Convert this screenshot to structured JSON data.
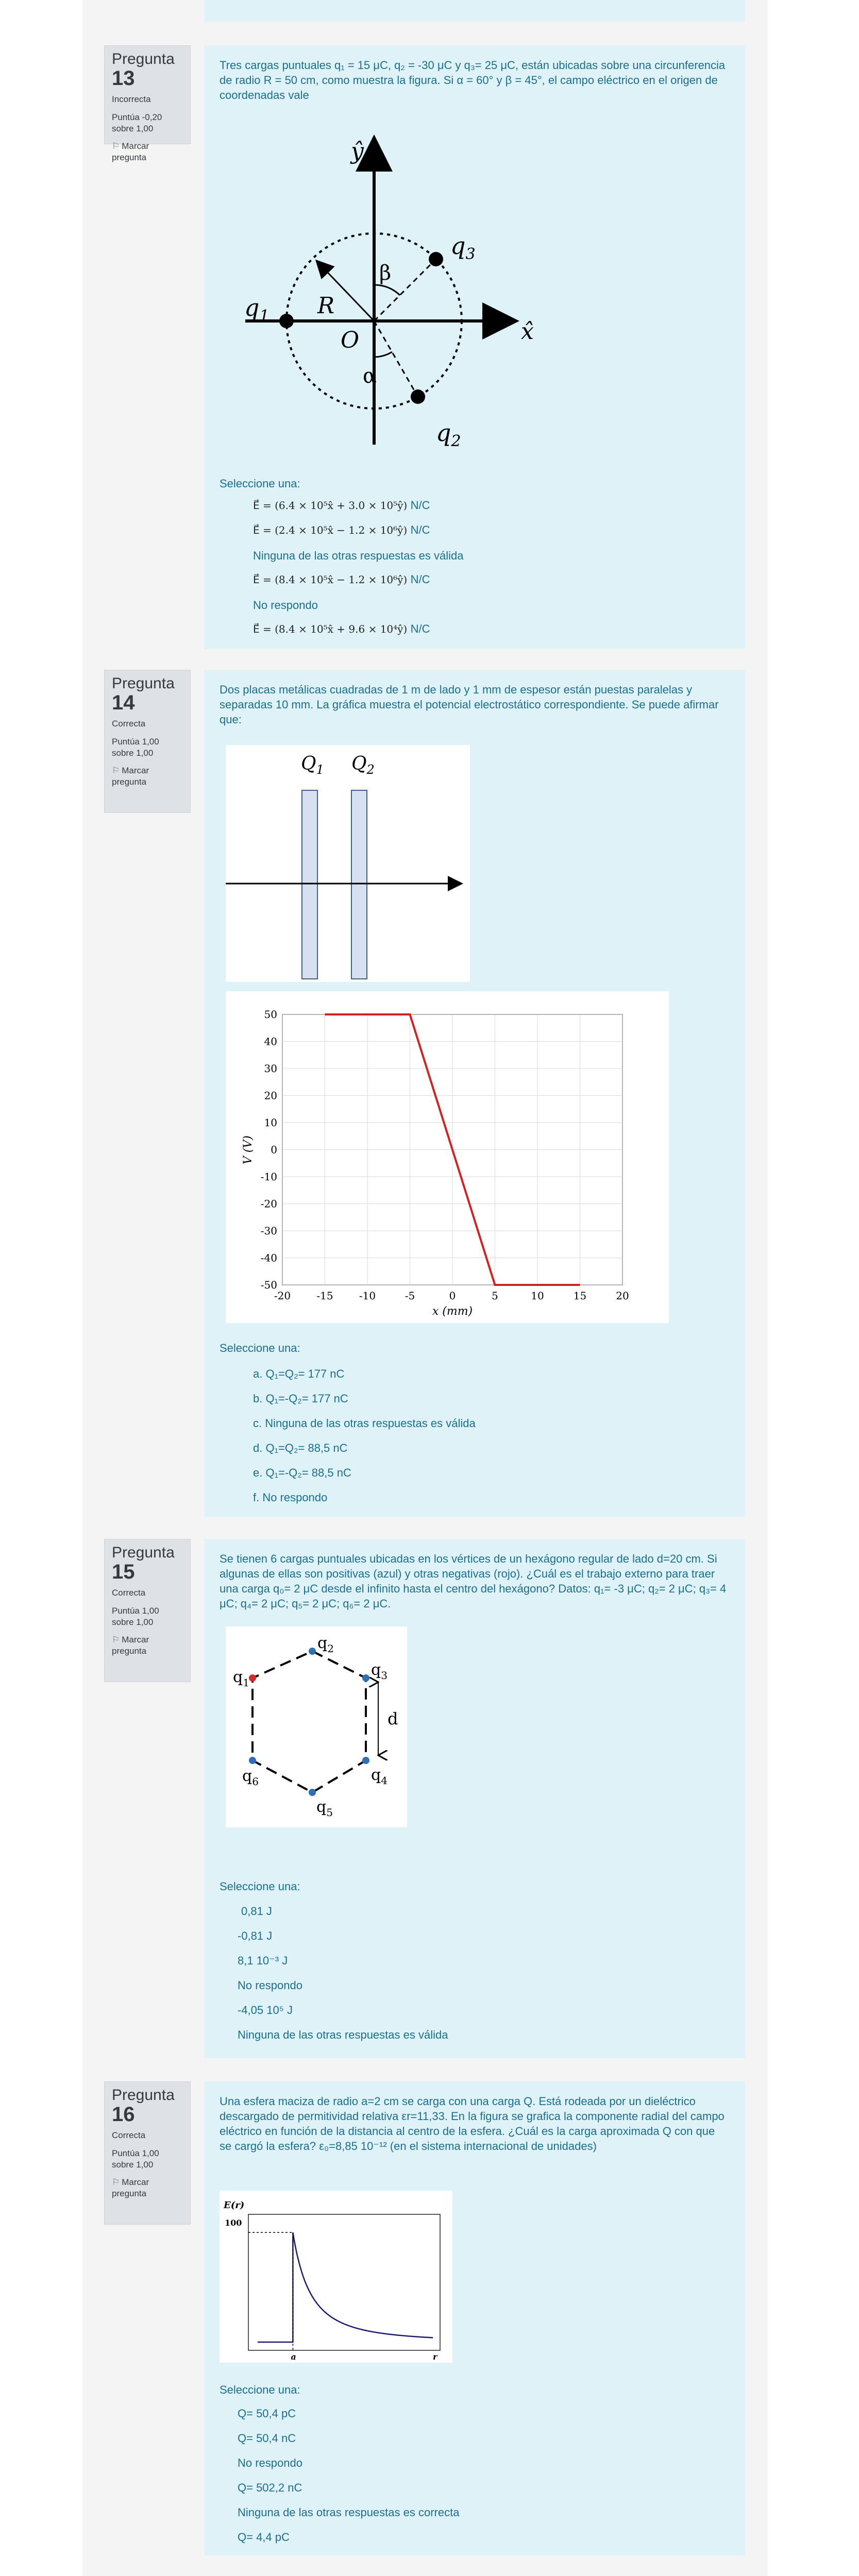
{
  "questions": [
    {
      "word": "Pregunta",
      "number": "13",
      "state": "Incorrecta",
      "grade": "Puntúa -0,20 sobre 1,00",
      "flag": "Marcar pregunta",
      "text": "Tres cargas puntuales q₁ = 15 μC, q₂ = -30 μC y q₃= 25 μC, están ubicadas sobre una circunferencia de radio R = 50 cm, como muestra la figura. Si α = 60° y β = 45°, el campo eléctrico en el origen de coordenadas vale",
      "figure_labels": {
        "y": "ŷ",
        "x": "x̂",
        "q1": "q",
        "q2": "q",
        "q3": "q",
        "s1": "1",
        "s2": "2",
        "s3": "3",
        "R": "R",
        "O": "O",
        "alpha": "α",
        "beta": "β"
      },
      "prompt": "Seleccione una:",
      "options": [
        {
          "math": "E⃗ = (6.4 × 10⁵x̂ + 3.0 × 10⁵ŷ)",
          "unit": "N/C"
        },
        {
          "math": "E⃗ = (2.4 × 10⁵x̂ − 1.2 × 10⁶ŷ)",
          "unit": "N/C"
        },
        {
          "text": "Ninguna de las otras respuestas es válida"
        },
        {
          "math": "E⃗ = (8.4 × 10⁵x̂ − 1.2 × 10⁶ŷ)",
          "unit": "N/C"
        },
        {
          "text": "No respondo"
        },
        {
          "math": "E⃗ = (8.4 × 10⁵x̂ + 9.6 × 10⁴ŷ)",
          "unit": "N/C"
        }
      ]
    },
    {
      "word": "Pregunta",
      "number": "14",
      "state": "Correcta",
      "grade": "Puntúa 1,00 sobre 1,00",
      "flag": "Marcar pregunta",
      "text": "Dos placas metálicas cuadradas de 1 m de lado y 1 mm de espesor están puestas paralelas y separadas 10 mm. La gráfica muestra el potencial electrostático correspondiente. Se puede afirmar que:",
      "plate_labels": {
        "q1": "Q",
        "q2": "Q",
        "s1": "1",
        "s2": "2"
      },
      "prompt": "Seleccione una:",
      "options": [
        "a. Q₁=Q₂= 177 nC",
        "b. Q₁=-Q₂= 177 nC",
        "c. Ninguna de las otras respuestas es válida",
        "d. Q₁=Q₂= 88,5 nC",
        "e. Q₁=-Q₂= 88,5 nC",
        "f. No respondo"
      ]
    },
    {
      "word": "Pregunta",
      "number": "15",
      "state": "Correcta",
      "grade": "Puntúa 1,00 sobre 1,00",
      "flag": "Marcar pregunta",
      "text": "Se tienen 6 cargas puntuales ubicadas en los vértices de un hexágono regular de lado d=20 cm. Si algunas de ellas son positivas (azul) y otras negativas (rojo). ¿Cuál es el trabajo externo para traer una carga q₀= 2 μC desde el infinito hasta el centro del hexágono? Datos: q₁= -3 μC; q₂= 2 μC; q₃= 4 μC; q₄= 2 μC; q₅= 2 μC; q₆= 2 μC.",
      "hex_labels": {
        "q": "q",
        "s1": "1",
        "s2": "2",
        "s3": "3",
        "s4": "4",
        "s5": "5",
        "s6": "6",
        "d": "d"
      },
      "colors": {
        "positive": "#2f6fb5",
        "negative": "#d42a2a"
      },
      "prompt": "Seleccione una:",
      "options": [
        "0,81 J",
        "-0,81 J",
        "8,1 10⁻³ J",
        "No respondo",
        "-4,05 10⁵ J",
        "Ninguna de las otras respuestas es válida"
      ]
    },
    {
      "word": "Pregunta",
      "number": "16",
      "state": "Correcta",
      "grade": "Puntúa 1,00 sobre 1,00",
      "flag": "Marcar pregunta",
      "text": "Una esfera maciza de radio a=2 cm se carga con una carga Q. Está rodeada por un dieléctrico descargado de permitividad relativa εr=11,33. En la figura se grafica la componente radial del campo eléctrico en función de la distancia al centro de la esfera. ¿Cuál es la carga aproximada Q con que se cargó la esfera? ε₀=8,85 10⁻¹² (en el sistema internacional de unidades)",
      "prompt": "Seleccione una:",
      "options": [
        "Q= 50,4 pC",
        "Q= 50,4 nC",
        "No respondo",
        "Q= 502,2 nC",
        "Ninguna de las otras respuestas es correcta",
        "Q= 4,4 pC"
      ]
    }
  ],
  "chart_data": [
    {
      "type": "line",
      "xlabel": "x (mm)",
      "ylabel": "V (V)",
      "xlim": [
        -20,
        20
      ],
      "ylim": [
        -50,
        50
      ],
      "x_ticks": [
        "-20",
        "-15",
        "-10",
        "-5",
        "0",
        "5",
        "10",
        "15",
        "20"
      ],
      "y_ticks": [
        "50",
        "40",
        "30",
        "20",
        "10",
        "0",
        "-10",
        "-20",
        "-30",
        "-40",
        "-50"
      ],
      "grid": true,
      "series": [
        {
          "color": "#d42020",
          "x": [
            -15,
            -5,
            5,
            15
          ],
          "y": [
            50,
            50,
            -50,
            -50
          ]
        }
      ]
    },
    {
      "type": "line",
      "ylabel": "E(r)",
      "xlabel": "r",
      "y_marker_label": "100",
      "x_marker_label": "a",
      "grid": false,
      "series": [
        {
          "color": "#1a1a6e",
          "x": [
            0,
            0.5,
            1,
            1.5,
            2,
            3,
            4,
            6,
            8,
            10
          ],
          "y": [
            0,
            0,
            0,
            0,
            100,
            44.4,
            25,
            11.1,
            6.25,
            4
          ]
        }
      ]
    }
  ]
}
